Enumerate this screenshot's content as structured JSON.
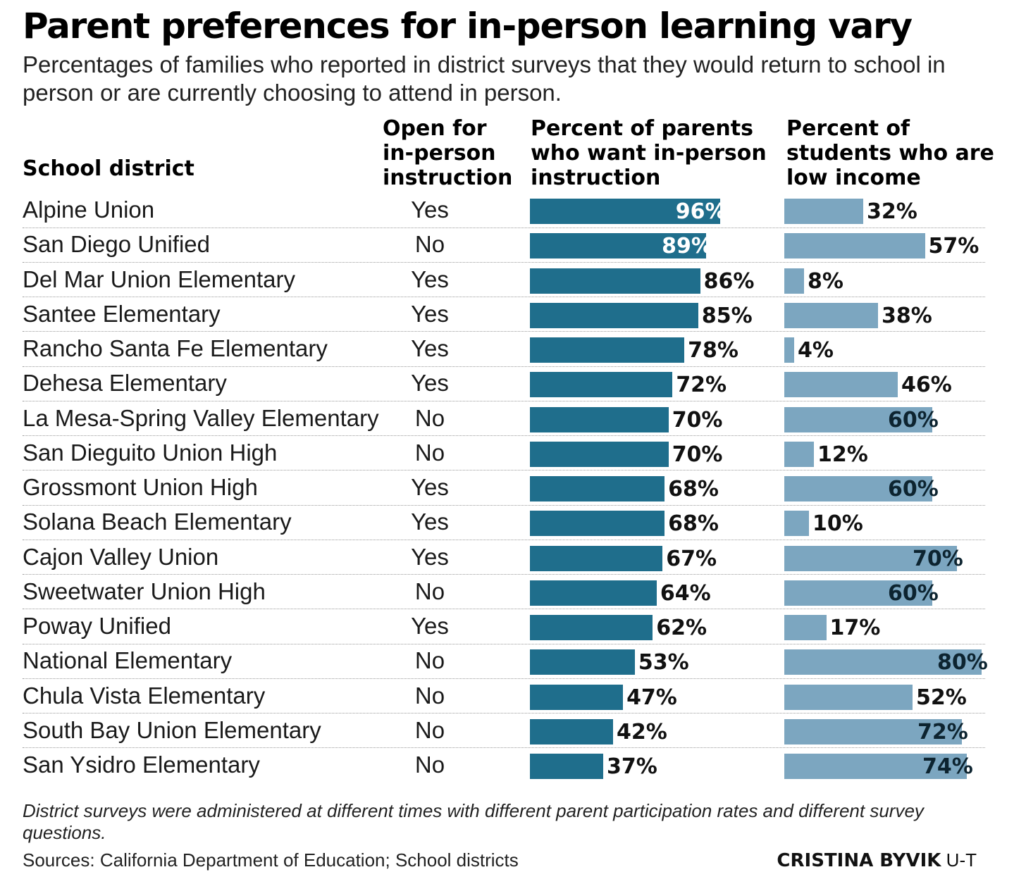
{
  "title": "Parent preferences for in-person learning vary",
  "subtitle": "Percentages of families who reported in district surveys that they would return to school in person or are currently choosing to attend in person.",
  "headers": {
    "district": "School district",
    "open": "Open for in-person instruction",
    "parents": "Percent of parents who want in-person instruction",
    "income": "Percent of students who are low income"
  },
  "colors": {
    "parents_bar": "#1f6e8c",
    "income_bar": "#7ca6c0"
  },
  "chart_data": {
    "type": "bar",
    "categories": [
      "Alpine Union",
      "San Diego Unified",
      "Del Mar Union Elementary",
      "Santee Elementary",
      "Rancho Santa Fe Elementary",
      "Dehesa Elementary",
      "La Mesa-Spring Valley Elementary",
      "San Dieguito Union High",
      "Grossmont Union High",
      "Solana Beach Elementary",
      "Cajon Valley Union",
      "Sweetwater Union High",
      "Poway Unified",
      "National Elementary",
      "Chula Vista Elementary",
      "South Bay Union Elementary",
      "San Ysidro Elementary"
    ],
    "open_for_in_person": [
      "Yes",
      "No",
      "Yes",
      "Yes",
      "Yes",
      "Yes",
      "No",
      "No",
      "Yes",
      "Yes",
      "Yes",
      "No",
      "Yes",
      "No",
      "No",
      "No",
      "No"
    ],
    "series": [
      {
        "name": "Percent of parents who want in-person instruction",
        "values": [
          96,
          89,
          86,
          85,
          78,
          72,
          70,
          70,
          68,
          68,
          67,
          64,
          62,
          53,
          47,
          42,
          37
        ],
        "labels": [
          "96%",
          "89%",
          "86%",
          "85%",
          "78%",
          "72%",
          "70%",
          "70%",
          "68%",
          "68%",
          "67%",
          "64%",
          "62%",
          "53%",
          "47%",
          "42%",
          "37%"
        ]
      },
      {
        "name": "Percent of students who are low income",
        "values": [
          32,
          57,
          8,
          38,
          4,
          46,
          60,
          12,
          60,
          10,
          70,
          60,
          17,
          80,
          52,
          72,
          74
        ],
        "labels": [
          "32%",
          "57%",
          "8%",
          "38%",
          "4%",
          "46%",
          "60%",
          "12%",
          "60%",
          "10%",
          "70%",
          "60%",
          "17%",
          "80%",
          "52%",
          "72%",
          "74%"
        ]
      }
    ],
    "ylim": [
      0,
      100
    ]
  },
  "footer": {
    "note": "District surveys were administered at different times with different parent participation rates and different survey questions.",
    "sources": "Sources: California Department of Education; School districts",
    "credit_name": "CRISTINA BYVIK",
    "credit_org": "U-T"
  }
}
